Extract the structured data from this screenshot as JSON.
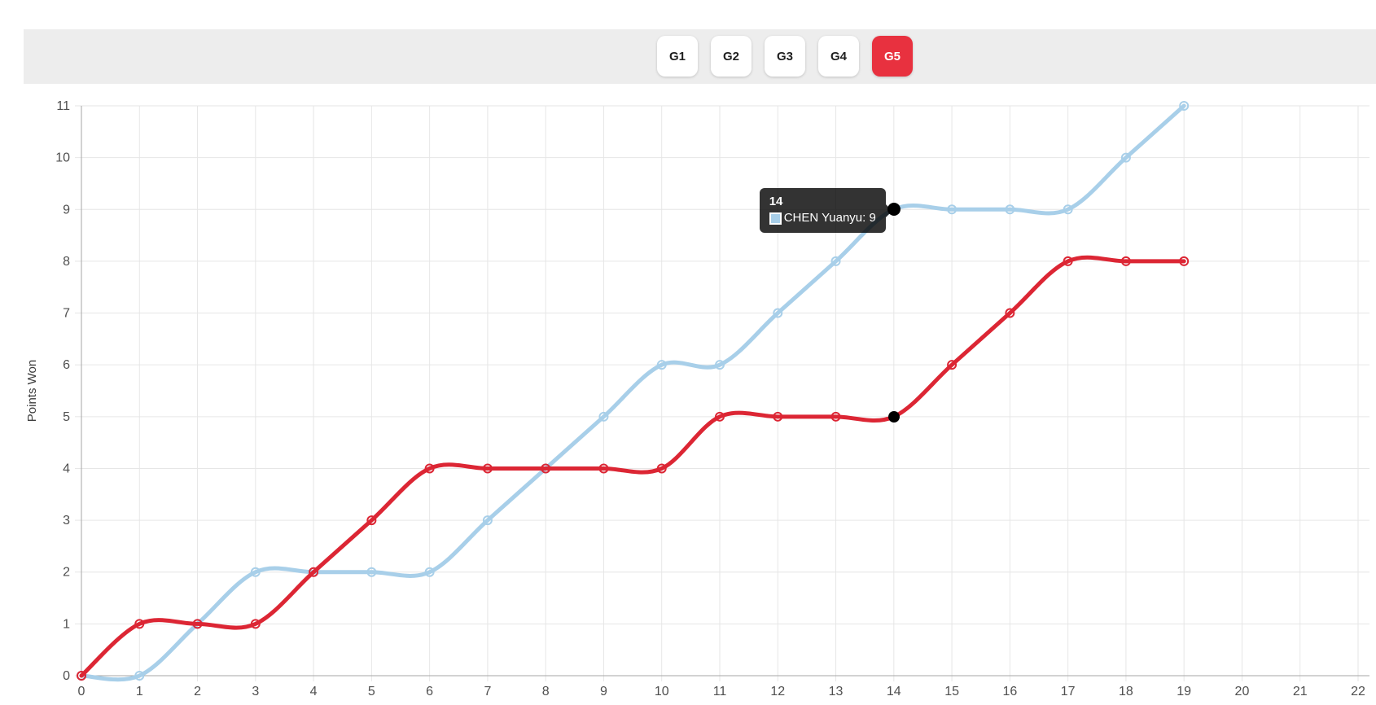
{
  "tab_bar": {
    "tabs": [
      {
        "label": "G1"
      },
      {
        "label": "G2"
      },
      {
        "label": "G3"
      },
      {
        "label": "G4"
      },
      {
        "label": "G5"
      }
    ],
    "active_tab": "G5",
    "active_tab_color": "#e8313f",
    "bar_color": "#ededed"
  },
  "chart_data": {
    "type": "line",
    "title": "",
    "xlabel": "",
    "ylabel": "Points Won",
    "xlim": [
      0,
      22
    ],
    "ylim": [
      0,
      11
    ],
    "grid": true,
    "legend_position": "none",
    "x_ticks": [
      0,
      1,
      2,
      3,
      4,
      5,
      6,
      7,
      8,
      9,
      10,
      11,
      12,
      13,
      14,
      15,
      16,
      17,
      18,
      19,
      20,
      21,
      22
    ],
    "y_ticks": [
      0,
      1,
      2,
      3,
      4,
      5,
      6,
      7,
      8,
      9,
      10,
      11
    ],
    "x": [
      0,
      1,
      2,
      3,
      4,
      5,
      6,
      7,
      8,
      9,
      10,
      11,
      12,
      13,
      14,
      15,
      16,
      17,
      18,
      19
    ],
    "series": [
      {
        "name": "CHEN Yuanyu",
        "color": "#a8cfe9",
        "values": [
          0,
          0,
          1,
          2,
          2,
          2,
          2,
          3,
          4,
          5,
          6,
          6,
          7,
          8,
          9,
          9,
          9,
          9,
          10,
          11
        ]
      },
      {
        "name": "",
        "color": "#dc2634",
        "values": [
          0,
          1,
          1,
          1,
          2,
          3,
          4,
          4,
          4,
          4,
          4,
          5,
          5,
          5,
          5,
          6,
          7,
          8,
          8,
          8
        ]
      }
    ],
    "highlight_x": 14,
    "tooltip": {
      "title": "14",
      "entry": "CHEN Yuanyu: 9",
      "swatch_color": "#a8cfe9"
    }
  },
  "colors": {
    "grid": "#e6e6e6",
    "axis": "#a6a6a6",
    "tick_text": "#4f4f4f",
    "axis_label_text": "#3d3d3d",
    "tooltip_bg": "rgba(0,0,0,0.8)",
    "highlight_dot": "#000000"
  }
}
